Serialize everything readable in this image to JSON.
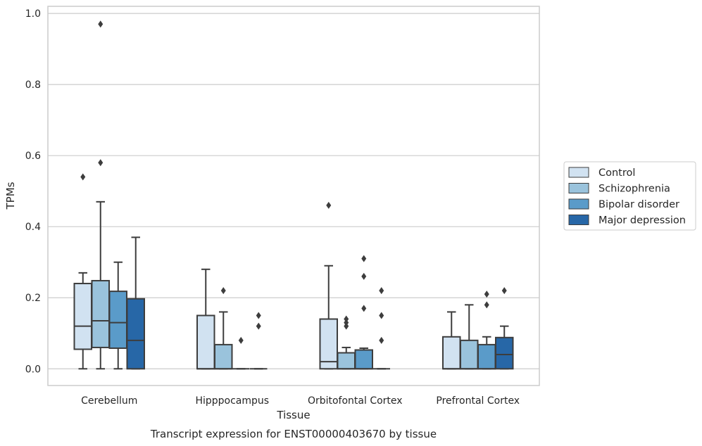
{
  "chart_data": {
    "type": "box",
    "title": "Transcript expression for ENST00000403670 by tissue",
    "xlabel": "Tissue",
    "ylabel": "TPMs",
    "ylim": [
      -0.047,
      1.02
    ],
    "yticks": [
      "0.0",
      "0.2",
      "0.4",
      "0.6",
      "0.8",
      "1.0"
    ],
    "grid": true,
    "legend_position": "right",
    "categories": [
      "Cerebellum",
      "Hipppocampus",
      "Orbitofontal Cortex",
      "Prefrontal Cortex"
    ],
    "series": [
      {
        "name": "Control",
        "color": "#d1e2f1",
        "boxes": [
          {
            "whislo": 0.0,
            "q1": 0.055,
            "med": 0.12,
            "q3": 0.24,
            "whishi": 0.27,
            "fliers": [
              0.54
            ]
          },
          {
            "whislo": 0.0,
            "q1": 0.0,
            "med": 0.0,
            "q3": 0.15,
            "whishi": 0.28,
            "fliers": []
          },
          {
            "whislo": 0.0,
            "q1": 0.0,
            "med": 0.02,
            "q3": 0.14,
            "whishi": 0.29,
            "fliers": [
              0.46
            ]
          },
          {
            "whislo": 0.0,
            "q1": 0.0,
            "med": 0.0,
            "q3": 0.09,
            "whishi": 0.16,
            "fliers": []
          }
        ]
      },
      {
        "name": "Schizophrenia",
        "color": "#9ac3dc",
        "boxes": [
          {
            "whislo": 0.0,
            "q1": 0.06,
            "med": 0.135,
            "q3": 0.248,
            "whishi": 0.47,
            "fliers": [
              0.58,
              0.97
            ]
          },
          {
            "whislo": 0.0,
            "q1": 0.0,
            "med": 0.0,
            "q3": 0.068,
            "whishi": 0.16,
            "fliers": [
              0.22
            ]
          },
          {
            "whislo": 0.0,
            "q1": 0.0,
            "med": 0.0,
            "q3": 0.045,
            "whishi": 0.06,
            "fliers": [
              0.12,
              0.13,
              0.14
            ]
          },
          {
            "whislo": 0.0,
            "q1": 0.0,
            "med": 0.0,
            "q3": 0.08,
            "whishi": 0.18,
            "fliers": []
          }
        ]
      },
      {
        "name": "Bipolar disorder",
        "color": "#5a9bc9",
        "boxes": [
          {
            "whislo": 0.0,
            "q1": 0.058,
            "med": 0.13,
            "q3": 0.218,
            "whishi": 0.3,
            "fliers": []
          },
          {
            "whislo": 0.0,
            "q1": 0.0,
            "med": 0.0,
            "q3": 0.0,
            "whishi": 0.0,
            "fliers": [
              0.08
            ]
          },
          {
            "whislo": 0.0,
            "q1": 0.0,
            "med": 0.0,
            "q3": 0.053,
            "whishi": 0.058,
            "fliers": [
              0.17,
              0.26,
              0.31
            ]
          },
          {
            "whislo": 0.0,
            "q1": 0.0,
            "med": 0.0,
            "q3": 0.068,
            "whishi": 0.09,
            "fliers": [
              0.18,
              0.21
            ]
          }
        ]
      },
      {
        "name": "Major depression",
        "color": "#2767a7",
        "boxes": [
          {
            "whislo": 0.0,
            "q1": 0.0,
            "med": 0.08,
            "q3": 0.197,
            "whishi": 0.37,
            "fliers": []
          },
          {
            "whislo": 0.0,
            "q1": 0.0,
            "med": 0.0,
            "q3": 0.0,
            "whishi": 0.0,
            "fliers": [
              0.12,
              0.15
            ]
          },
          {
            "whislo": 0.0,
            "q1": 0.0,
            "med": 0.0,
            "q3": 0.0,
            "whishi": 0.0,
            "fliers": [
              0.08,
              0.15,
              0.22
            ]
          },
          {
            "whislo": 0.0,
            "q1": 0.0,
            "med": 0.04,
            "q3": 0.088,
            "whishi": 0.12,
            "fliers": [
              0.22
            ]
          }
        ]
      }
    ]
  }
}
